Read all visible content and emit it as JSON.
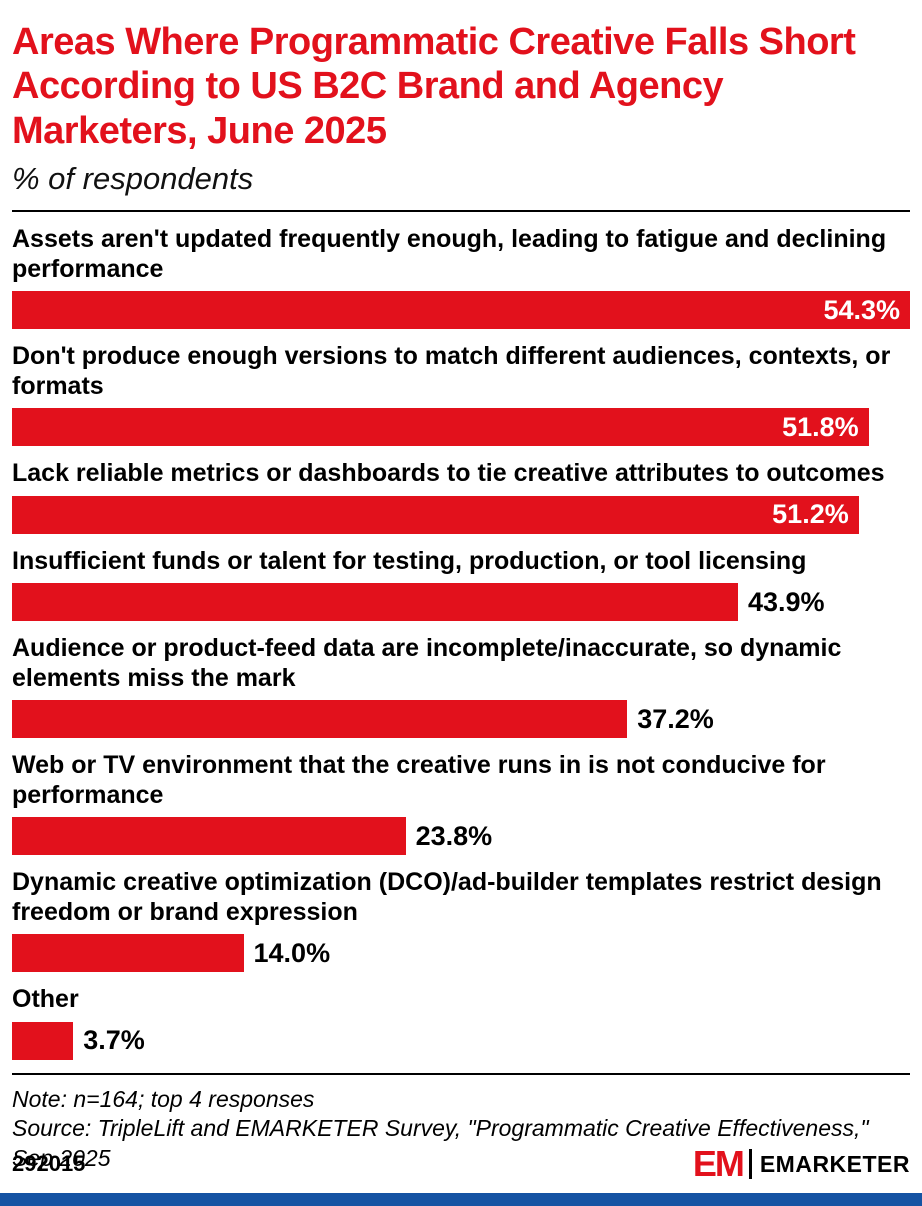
{
  "chart_data": {
    "type": "bar",
    "orientation": "horizontal",
    "title": "Areas Where Programmatic Creative Falls Short According to US B2C Brand and Agency Marketers, June 2025",
    "subtitle": "% of respondents",
    "categories": [
      "Assets aren't updated frequently enough, leading to fatigue and declining performance",
      "Don't produce enough versions to match different audiences, contexts, or formats",
      "Lack reliable metrics or dashboards to tie creative attributes to outcomes",
      "Insufficient funds or talent for testing, production, or tool licensing",
      "Audience or product-feed data are incomplete/inaccurate, so dynamic elements miss the mark",
      "Web or TV environment that the creative runs in is not conducive for performance",
      "Dynamic creative optimization (DCO)/ad-builder templates restrict design freedom or brand expression",
      "Other"
    ],
    "values": [
      54.3,
      51.8,
      51.2,
      43.9,
      37.2,
      23.8,
      14.0,
      3.7
    ],
    "value_labels": [
      "54.3%",
      "51.8%",
      "51.2%",
      "43.9%",
      "37.2%",
      "23.8%",
      "14.0%",
      "3.7%"
    ],
    "xlim": [
      0,
      54.3
    ],
    "bar_color": "#e2111c",
    "inside_label_threshold": 0.9,
    "grid": false,
    "legend": "none"
  },
  "notes": {
    "note": "Note: n=164; top 4 responses",
    "source": "Source: TripleLift and EMARKETER Survey, \"Programmatic Creative Effectiveness,\" Sep 2025"
  },
  "footer": {
    "chart_id": "292015",
    "logo_mark": "EM",
    "logo_text": "EMARKETER"
  },
  "colors": {
    "accent_red": "#e2111c",
    "footer_blue": "#1553a3",
    "text_black": "#000000",
    "bar_label_white": "#ffffff"
  }
}
